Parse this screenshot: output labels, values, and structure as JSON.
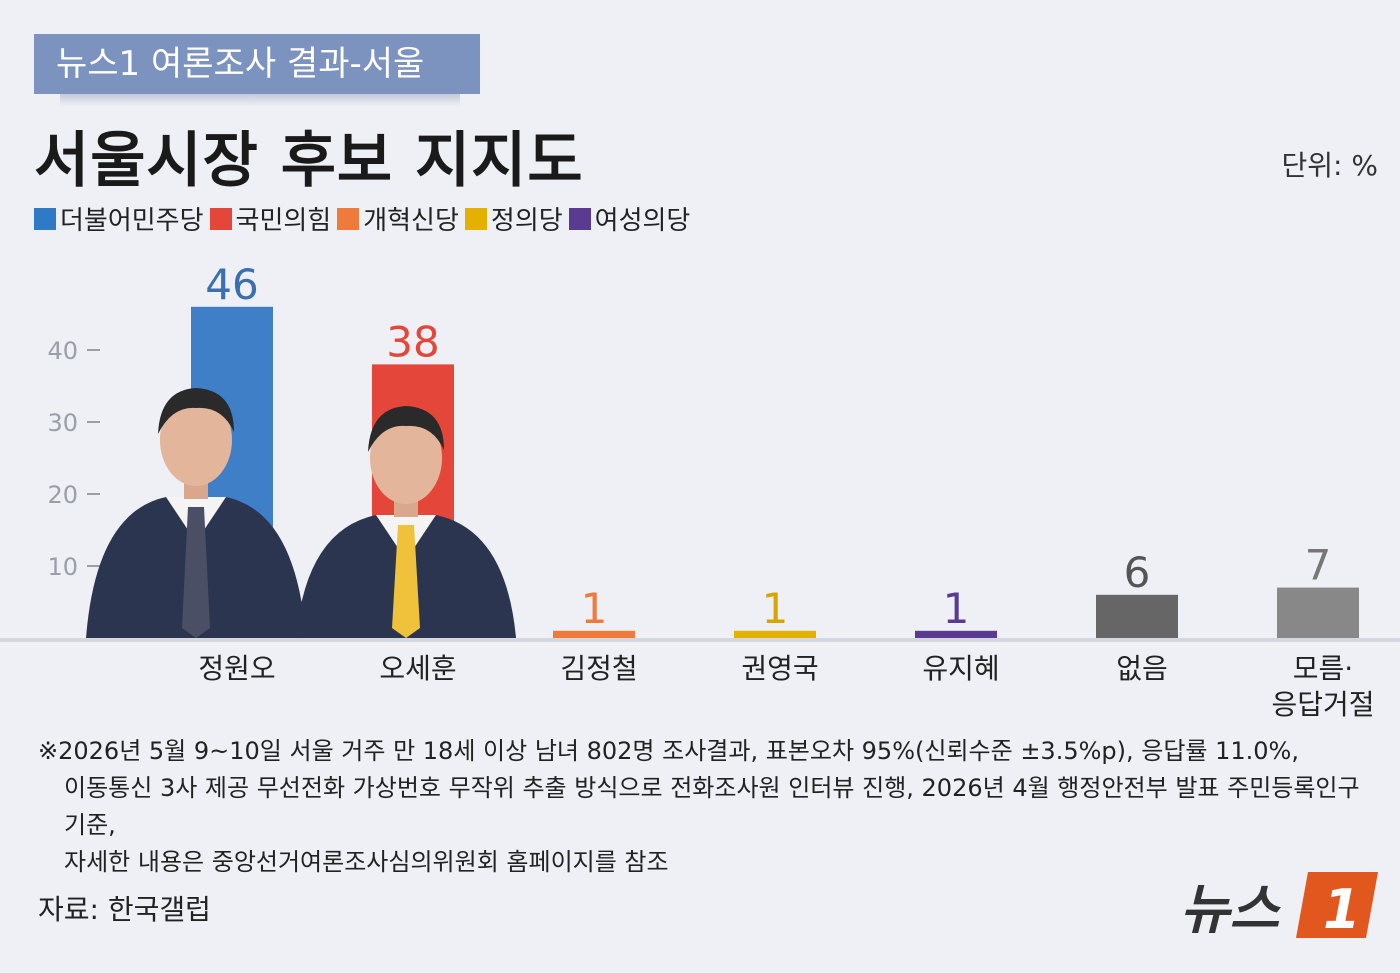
{
  "header": {
    "tag": "뉴스1 여론조사 결과-서울",
    "title": "서울시장 후보 지지도",
    "unit": "단위: %"
  },
  "legend": [
    {
      "label": "더불어민주당",
      "color": "#2f7ac4"
    },
    {
      "label": "국민의힘",
      "color": "#e5463a"
    },
    {
      "label": "개혁신당",
      "color": "#ef7a3a"
    },
    {
      "label": "정의당",
      "color": "#e5b100"
    },
    {
      "label": "여성의당",
      "color": "#5b3a92"
    }
  ],
  "chart_data": {
    "type": "bar",
    "categories": [
      "정원오",
      "오세훈",
      "김정철",
      "권영국",
      "유지혜",
      "없음",
      "모름·응답거절"
    ],
    "category_lines": [
      [
        "정원오"
      ],
      [
        "오세훈"
      ],
      [
        "김정철"
      ],
      [
        "권영국"
      ],
      [
        "유지혜"
      ],
      [
        "없음"
      ],
      [
        "모름·",
        "응답거절"
      ]
    ],
    "values": [
      46,
      38,
      1,
      1,
      1,
      6,
      7
    ],
    "colors": [
      "#3f7fc7",
      "#e5463a",
      "#ef7a3a",
      "#e5b100",
      "#5b3a92",
      "#666666",
      "#888888"
    ],
    "label_colors": [
      "#3a6fb0",
      "#e5463a",
      "#ef7a3a",
      "#d9a400",
      "#5b3a92",
      "#555555",
      "#777777"
    ],
    "yticks": [
      10,
      20,
      30,
      40
    ],
    "ylim": [
      0,
      50
    ],
    "grid": false,
    "legend_position": "top-left"
  },
  "footnote": {
    "lines": [
      "※2026년 5월 9~10일 서울 거주 만 18세 이상 남녀 802명 조사결과, 표본오차 95%(신뢰수준 ±3.5%p), 응답률 11.0%,",
      "이동통신 3사 제공 무선전화 가상번호 무작위 추출 방식으로 전화조사원 인터뷰 진행, 2026년 4월 행정안전부 발표 주민등록인구 기준,",
      "자세한 내용은 중앙선거여론조사심의위원회 홈페이지를 참조"
    ]
  },
  "source": "자료: 한국갤럽",
  "logo": {
    "text": "뉴스",
    "mark": "1"
  }
}
